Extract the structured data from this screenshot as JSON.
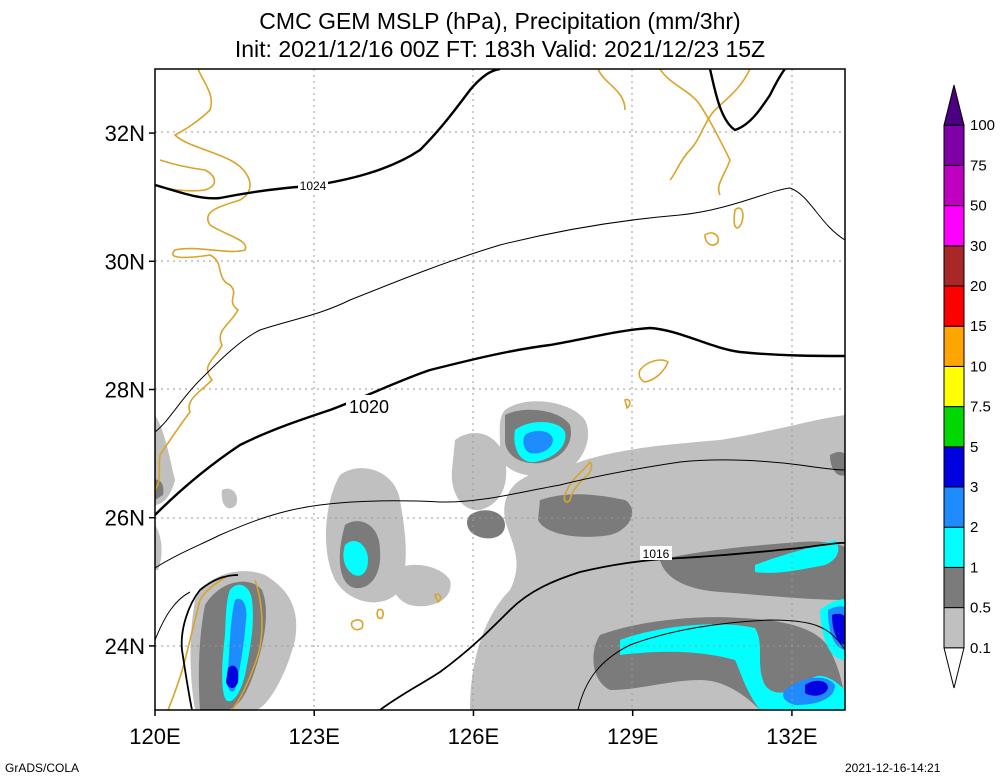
{
  "title": {
    "line1": "CMC GEM MSLP (hPa), Precipitation (mm/3hr)",
    "line2": "Init: 2021/12/16 00Z  FT: 183h  Valid: 2021/12/23 15Z"
  },
  "map": {
    "lon_range": [
      120,
      133
    ],
    "lat_range": [
      23,
      33
    ],
    "lon_ticks": [
      {
        "value": 120,
        "label": "120E"
      },
      {
        "value": 123,
        "label": "123E"
      },
      {
        "value": 126,
        "label": "126E"
      },
      {
        "value": 129,
        "label": "129E"
      },
      {
        "value": 132,
        "label": "132E"
      }
    ],
    "lat_ticks": [
      {
        "value": 24,
        "label": "24N"
      },
      {
        "value": 26,
        "label": "26N"
      },
      {
        "value": 28,
        "label": "28N"
      },
      {
        "value": 30,
        "label": "30N"
      },
      {
        "value": 32,
        "label": "32N"
      }
    ],
    "isobar_labels": [
      "1024",
      "1020",
      "1016"
    ],
    "colors": {
      "coast": "#d9a42a",
      "grid": "#9a9a9a",
      "p01": "#c0c0c0",
      "p05": "#7b7b7b",
      "p1": "#00ffff",
      "p2": "#1e8cff",
      "p3": "#0000e0"
    }
  },
  "legend": {
    "levels": [
      "0.1",
      "0.5",
      "1",
      "2",
      "3",
      "5",
      "7.5",
      "10",
      "15",
      "20",
      "30",
      "50",
      "75",
      "100"
    ],
    "colors": [
      "#ffffff",
      "#c0c0c0",
      "#7b7b7b",
      "#00ffff",
      "#1e8cff",
      "#0000e0",
      "#00d800",
      "#ffff00",
      "#ffa500",
      "#ff0000",
      "#a82828",
      "#ff00ff",
      "#c000c0",
      "#8000a8",
      "#4b0082"
    ]
  },
  "footer": {
    "left": "GrADS/COLA",
    "right": "2021-12-16-14:21"
  }
}
